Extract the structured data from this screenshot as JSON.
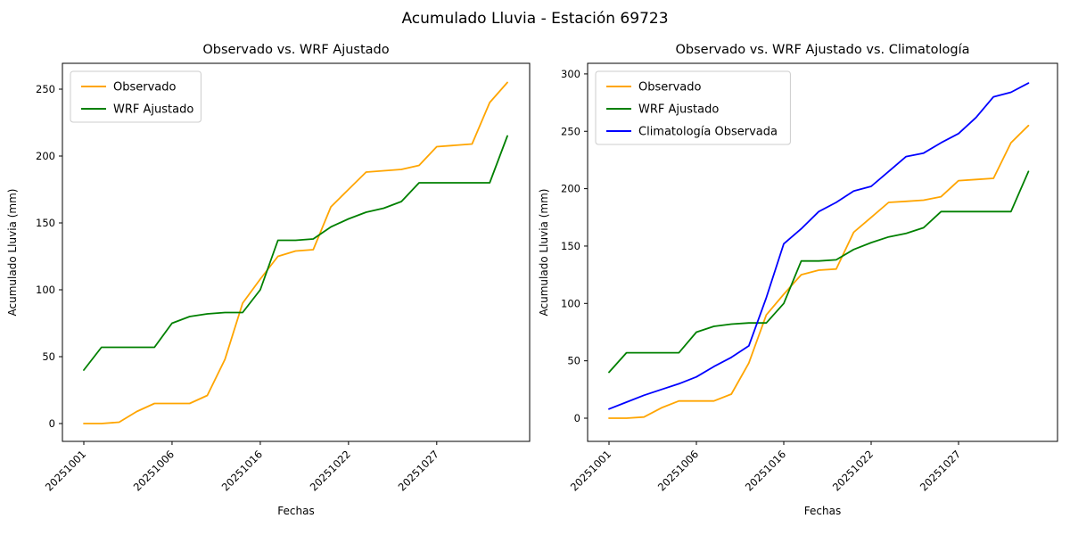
{
  "figure_title": "Acumulado Lluvia - Estación 69723",
  "chart_data": [
    {
      "type": "line",
      "title": "Observado vs. WRF Ajustado",
      "xlabel": "Fechas",
      "ylabel": "Acumulado Lluvia (mm)",
      "x_tick_labels": [
        "20251001",
        "20251006",
        "20251016",
        "20251022",
        "20251027"
      ],
      "x_tick_indices": [
        0,
        5,
        10,
        15,
        20
      ],
      "x_tick_rotation": 45,
      "n_points": 25,
      "y_ticks": [
        0,
        50,
        100,
        150,
        200,
        250
      ],
      "ylim": [
        -13,
        268
      ],
      "grid": false,
      "legend_position": "upper left",
      "series": [
        {
          "name": "Observado",
          "color": "#FFA500",
          "values": [
            0,
            0,
            1,
            9,
            15,
            15,
            15,
            21,
            48,
            90,
            108,
            125,
            129,
            130,
            162,
            175,
            188,
            189,
            190,
            193,
            207,
            208,
            209,
            240,
            255
          ]
        },
        {
          "name": "WRF Ajustado",
          "color": "#008000",
          "values": [
            40,
            57,
            57,
            57,
            57,
            75,
            80,
            82,
            83,
            83,
            100,
            137,
            137,
            138,
            147,
            153,
            158,
            161,
            166,
            180,
            180,
            180,
            180,
            180,
            215
          ]
        }
      ]
    },
    {
      "type": "line",
      "title": "Observado vs. WRF Ajustado vs. Climatología",
      "xlabel": "Fechas",
      "ylabel": "Acumulado Lluvia (mm)",
      "x_tick_labels": [
        "20251001",
        "20251006",
        "20251016",
        "20251022",
        "20251027"
      ],
      "x_tick_indices": [
        0,
        5,
        10,
        15,
        20
      ],
      "x_tick_rotation": 45,
      "n_points": 25,
      "y_ticks": [
        0,
        50,
        100,
        150,
        200,
        250,
        300
      ],
      "ylim": [
        -20,
        308
      ],
      "grid": false,
      "legend_position": "upper left",
      "series": [
        {
          "name": "Observado",
          "color": "#FFA500",
          "values": [
            0,
            0,
            1,
            9,
            15,
            15,
            15,
            21,
            48,
            90,
            108,
            125,
            129,
            130,
            162,
            175,
            188,
            189,
            190,
            193,
            207,
            208,
            209,
            240,
            255
          ]
        },
        {
          "name": "WRF Ajustado",
          "color": "#008000",
          "values": [
            40,
            57,
            57,
            57,
            57,
            75,
            80,
            82,
            83,
            83,
            100,
            137,
            137,
            138,
            147,
            153,
            158,
            161,
            166,
            180,
            180,
            180,
            180,
            180,
            215
          ]
        },
        {
          "name": "Climatología Observada",
          "color": "#0000FF",
          "values": [
            8,
            14,
            20,
            25,
            30,
            36,
            45,
            53,
            63,
            105,
            152,
            165,
            180,
            188,
            198,
            202,
            215,
            228,
            231,
            240,
            248,
            262,
            280,
            284,
            292
          ]
        }
      ]
    }
  ]
}
